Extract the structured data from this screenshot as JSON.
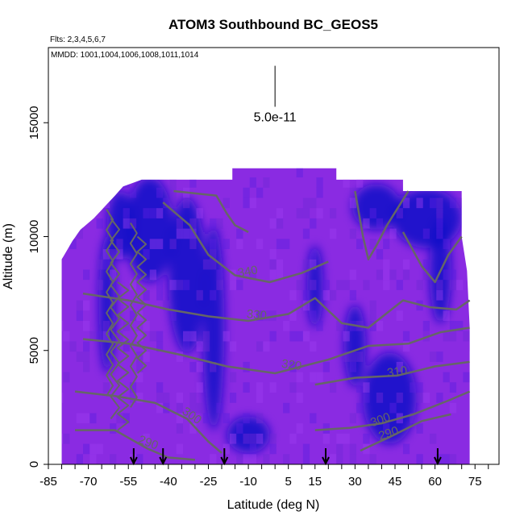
{
  "chart_data": {
    "type": "heatmap",
    "title": "ATOM3 Southbound BC_GEOS5",
    "flights_note": "Flts: 2,3,4,5,6,7",
    "dates_note": "MMDD: 1001,1004,1006,1008,1011,1014",
    "xlabel": "Latitude (deg N)",
    "ylabel": "Altitude (m)",
    "xlim": [
      -85,
      84
    ],
    "ylim": [
      0,
      18300
    ],
    "xticks": [
      -85,
      -70,
      -55,
      -40,
      -25,
      -10,
      5,
      15,
      30,
      45,
      60,
      75
    ],
    "xticks_minor_step": 5,
    "yticks": [
      0,
      5000,
      10000,
      15000
    ],
    "scale_bar": {
      "label": "5.0e-11",
      "x": 0,
      "y_bottom": 15700,
      "y_top": 17500
    },
    "colors": {
      "background_purple": "#8a2be2",
      "dark_blue": "#1010c8",
      "contour_gray": "#666666"
    },
    "extent": [
      {
        "lat": -80,
        "top": 9000
      },
      {
        "lat": -76,
        "top": 9800
      },
      {
        "lat": -73,
        "top": 10300
      },
      {
        "lat": -68,
        "top": 10800
      },
      {
        "lat": -64,
        "top": 11300
      },
      {
        "lat": -60,
        "top": 11800
      },
      {
        "lat": -57,
        "top": 12200
      },
      {
        "lat": -50,
        "top": 12500
      },
      {
        "lat": -30,
        "top": 12500
      },
      {
        "lat": -16,
        "top": 12500
      },
      {
        "lat": -16,
        "top": 13000
      },
      {
        "lat": 23,
        "top": 13000
      },
      {
        "lat": 23,
        "top": 12500
      },
      {
        "lat": 48,
        "top": 12500
      },
      {
        "lat": 48,
        "top": 12000
      },
      {
        "lat": 70,
        "top": 12000
      },
      {
        "lat": 70,
        "top": 10000
      },
      {
        "lat": 72,
        "top": 8500
      },
      {
        "lat": 73,
        "top": 6000
      },
      {
        "lat": 73,
        "top": 3500
      }
    ],
    "dark_regions": [
      {
        "lat": -58,
        "alt": 10500,
        "rx": 5,
        "ry": 1500
      },
      {
        "lat": -47,
        "alt": 10300,
        "rx": 9,
        "ry": 2300
      },
      {
        "lat": -33,
        "alt": 8300,
        "rx": 7,
        "ry": 3400
      },
      {
        "lat": -23,
        "alt": 6000,
        "rx": 4,
        "ry": 4500
      },
      {
        "lat": 38,
        "alt": 11300,
        "rx": 9,
        "ry": 1000
      },
      {
        "lat": 57,
        "alt": 10800,
        "rx": 13,
        "ry": 1300
      },
      {
        "lat": 43,
        "alt": 2900,
        "rx": 10,
        "ry": 2000
      },
      {
        "lat": 62,
        "alt": 8500,
        "rx": 4,
        "ry": 2300
      },
      {
        "lat": -63,
        "alt": 7000,
        "rx": 3,
        "ry": 3000
      },
      {
        "lat": 15,
        "alt": 7800,
        "rx": 3,
        "ry": 1800
      },
      {
        "lat": 30,
        "alt": 5200,
        "rx": 4,
        "ry": 1800
      },
      {
        "lat": -10,
        "alt": 1300,
        "rx": 8,
        "ry": 800
      }
    ],
    "contours": [
      {
        "label": "290",
        "label_lat": -48,
        "label_alt": 800,
        "label_angle": 20,
        "points": [
          [
            -75,
            1500
          ],
          [
            -60,
            1500
          ],
          [
            -48,
            700
          ],
          [
            -40,
            300
          ],
          [
            -30,
            200
          ]
        ]
      },
      {
        "label": "290",
        "label_lat": 43,
        "label_alt": 1200,
        "label_angle": -18,
        "points": [
          [
            32,
            600
          ],
          [
            43,
            1200
          ],
          [
            55,
            1900
          ],
          [
            66,
            2200
          ]
        ]
      },
      {
        "label": "300",
        "label_lat": -32,
        "label_alt": 2000,
        "label_angle": 35,
        "points": [
          [
            -75,
            3200
          ],
          [
            -60,
            3000
          ],
          [
            -45,
            2700
          ],
          [
            -33,
            2000
          ],
          [
            -25,
            1000
          ],
          [
            -20,
            500
          ]
        ]
      },
      {
        "label": "300",
        "label_lat": 40,
        "label_alt": 1800,
        "label_angle": -20,
        "points": [
          [
            15,
            1500
          ],
          [
            28,
            1600
          ],
          [
            40,
            1800
          ],
          [
            52,
            2200
          ],
          [
            65,
            2800
          ],
          [
            73,
            3200
          ]
        ]
      },
      {
        "label": "310",
        "label_lat": 46,
        "label_alt": 3900,
        "label_angle": -8,
        "points": [
          [
            15,
            3500
          ],
          [
            30,
            3800
          ],
          [
            46,
            3900
          ],
          [
            60,
            4300
          ],
          [
            73,
            4500
          ]
        ]
      },
      {
        "label": "320",
        "label_lat": 6,
        "label_alt": 4200,
        "label_angle": 8,
        "points": [
          [
            -72,
            5500
          ],
          [
            -55,
            5300
          ],
          [
            -35,
            4800
          ],
          [
            -18,
            4300
          ],
          [
            0,
            4000
          ],
          [
            20,
            4600
          ],
          [
            35,
            5200
          ],
          [
            50,
            5300
          ],
          [
            62,
            5800
          ],
          [
            73,
            6000
          ]
        ]
      },
      {
        "label": "330",
        "label_lat": -7,
        "label_alt": 6400,
        "label_angle": 5,
        "points": [
          [
            -72,
            7500
          ],
          [
            -55,
            7200
          ],
          [
            -40,
            6800
          ],
          [
            -25,
            6500
          ],
          [
            -10,
            6300
          ],
          [
            5,
            6600
          ],
          [
            15,
            7300
          ],
          [
            25,
            6200
          ],
          [
            35,
            6000
          ],
          [
            48,
            7200
          ],
          [
            58,
            6900
          ],
          [
            68,
            6800
          ],
          [
            73,
            7200
          ]
        ]
      },
      {
        "label": "340",
        "label_lat": -10,
        "label_alt": 8300,
        "label_angle": -10,
        "points": [
          [
            -42,
            11500
          ],
          [
            -32,
            10500
          ],
          [
            -25,
            9200
          ],
          [
            -15,
            8300
          ],
          [
            -2,
            8000
          ],
          [
            10,
            8400
          ],
          [
            20,
            8900
          ]
        ]
      },
      {
        "label": "",
        "label_lat": 0,
        "label_alt": 0,
        "label_angle": 0,
        "points": [
          [
            -38,
            12000
          ],
          [
            -22,
            11800
          ],
          [
            -18,
            11000
          ],
          [
            -15,
            10500
          ],
          [
            -10,
            10200
          ]
        ]
      },
      {
        "label": "",
        "label_lat": 0,
        "label_alt": 0,
        "label_angle": 0,
        "points": [
          [
            30,
            12000
          ],
          [
            33,
            10000
          ],
          [
            35,
            9000
          ],
          [
            38,
            9600
          ],
          [
            42,
            10500
          ],
          [
            50,
            12000
          ]
        ]
      },
      {
        "label": "",
        "label_lat": 0,
        "label_alt": 0,
        "label_angle": 0,
        "points": [
          [
            48,
            10200
          ],
          [
            55,
            8700
          ],
          [
            60,
            8000
          ],
          [
            65,
            9200
          ],
          [
            70,
            10000
          ]
        ]
      }
    ],
    "spiky_lines": [
      {
        "lat": -62,
        "alt_min": 3000,
        "alt_max": 11200
      },
      {
        "lat": -60,
        "alt_min": 2000,
        "alt_max": 10800
      },
      {
        "lat": -57,
        "alt_min": 1500,
        "alt_max": 8000
      },
      {
        "lat": -53,
        "alt_min": 2500,
        "alt_max": 10600
      },
      {
        "lat": -50,
        "alt_min": 4000,
        "alt_max": 10000
      }
    ],
    "arrows_lat": [
      -53,
      -42,
      -19,
      19,
      61
    ]
  }
}
